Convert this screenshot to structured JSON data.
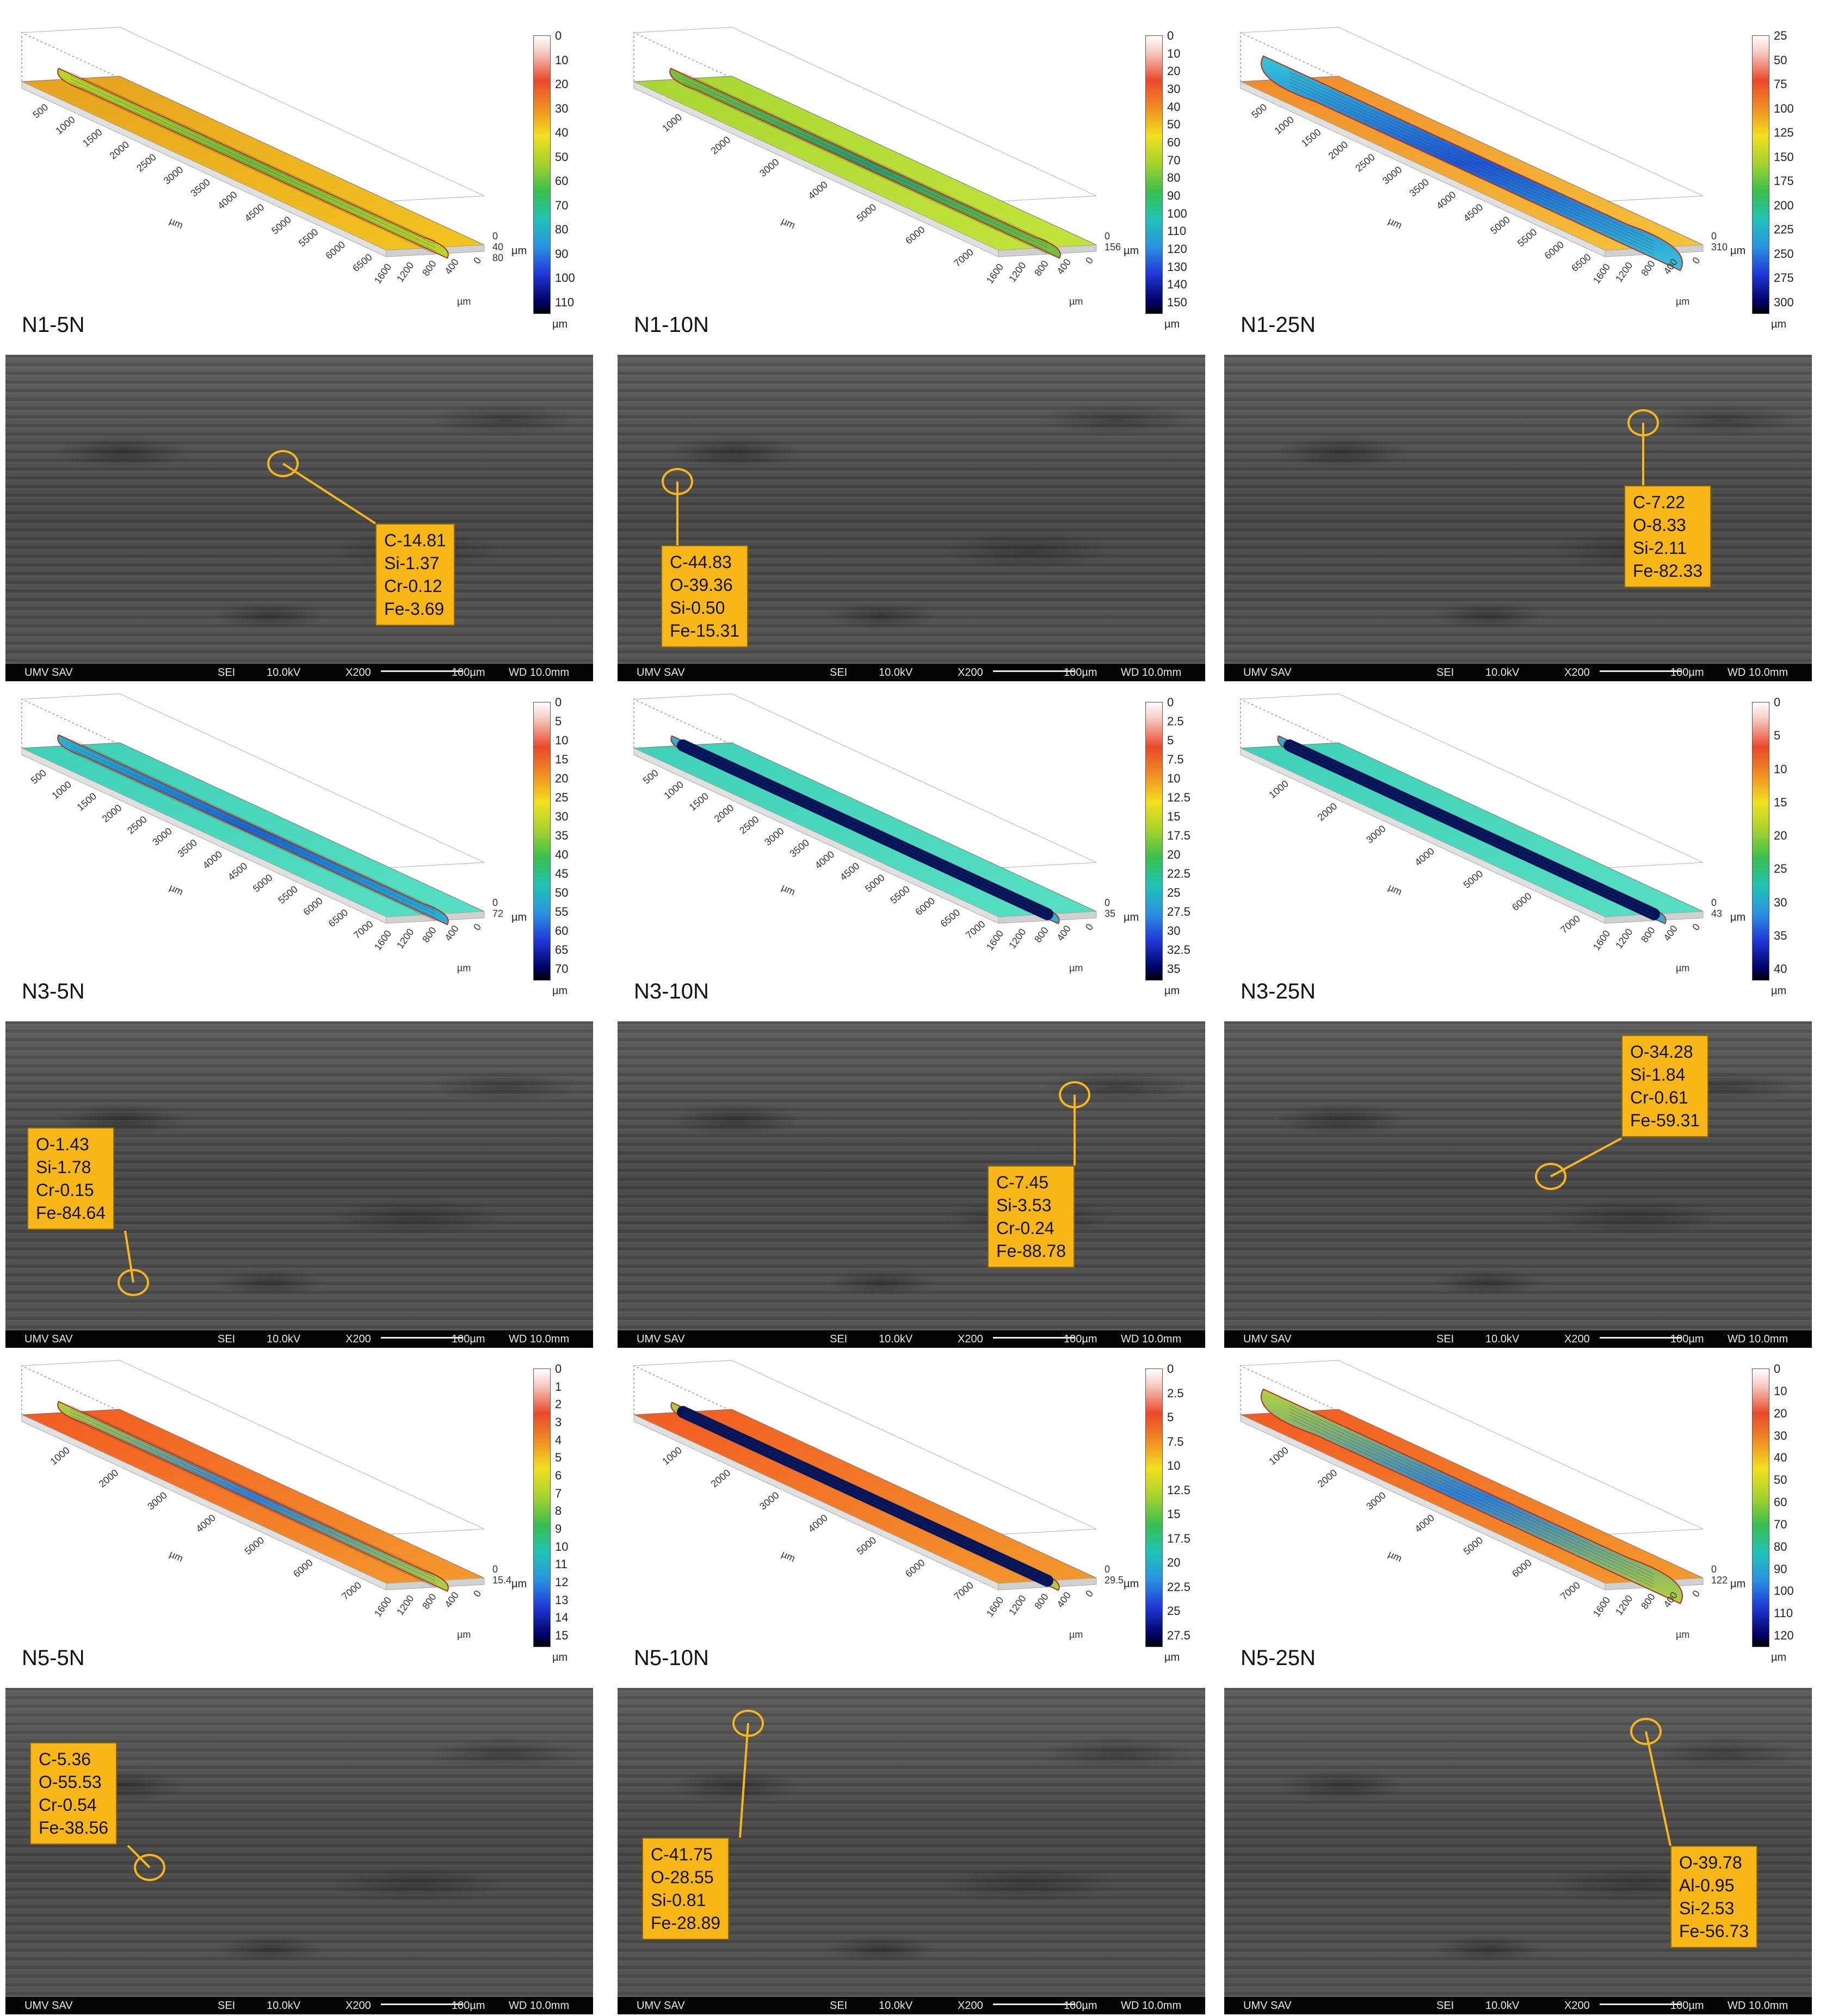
{
  "panels": [
    {
      "label": "N1-5N",
      "palette": "yellow",
      "zmax": "40",
      "zmax2": "80",
      "ticks": [
        "0",
        "10",
        "20",
        "30",
        "40",
        "50",
        "60",
        "70",
        "80",
        "90",
        "100",
        "110"
      ],
      "unit": "µm",
      "track": "narrow",
      "xticks": [
        "500",
        "1000",
        "1500",
        "2000",
        "2500",
        "3000",
        "3500",
        "4000",
        "4500",
        "5000",
        "5500",
        "6000",
        "6500"
      ],
      "eds": [
        "C-14.81",
        "Si-1.37",
        "Cr-0.12",
        "Fe-3.69"
      ]
    },
    {
      "label": "N1-10N",
      "palette": "lime",
      "zmax": "156",
      "zmax2": "",
      "ticks": [
        "0",
        "10",
        "20",
        "30",
        "40",
        "50",
        "60",
        "70",
        "80",
        "90",
        "100",
        "110",
        "120",
        "130",
        "140",
        "150"
      ],
      "unit": "µm",
      "track": "narrow",
      "xticks": [
        "1000",
        "2000",
        "3000",
        "4000",
        "5000",
        "6000",
        "7000"
      ],
      "eds": [
        "C-44.83",
        "O-39.36",
        "Si-0.50",
        "Fe-15.31"
      ]
    },
    {
      "label": "N1-25N",
      "palette": "orange",
      "zmax": "310",
      "zmax2": "",
      "ticks": [
        "25",
        "50",
        "75",
        "100",
        "125",
        "150",
        "175",
        "200",
        "225",
        "250",
        "275",
        "300"
      ],
      "unit": "µm",
      "track": "wide",
      "xticks": [
        "500",
        "1000",
        "1500",
        "2000",
        "2500",
        "3000",
        "3500",
        "4000",
        "4500",
        "5000",
        "5500",
        "6000",
        "6500"
      ],
      "eds": [
        "C-7.22",
        "O-8.33",
        "Si-2.11",
        "Fe-82.33"
      ]
    },
    {
      "label": "N3-5N",
      "palette": "teal",
      "zmax": "72",
      "zmax2": "",
      "ticks": [
        "0",
        "5",
        "10",
        "15",
        "20",
        "25",
        "30",
        "35",
        "40",
        "45",
        "50",
        "55",
        "60",
        "65",
        "70"
      ],
      "unit": "µm",
      "track": "narrow",
      "xticks": [
        "500",
        "1000",
        "1500",
        "2000",
        "2500",
        "3000",
        "3500",
        "4000",
        "4500",
        "5000",
        "5500",
        "6000",
        "6500",
        "7000"
      ],
      "eds": [
        "O-1.43",
        "Si-1.78",
        "Cr-0.15",
        "Fe-84.64"
      ]
    },
    {
      "label": "N3-10N",
      "palette": "teal",
      "zmax": "35",
      "zmax2": "",
      "ticks": [
        "0",
        "2.5",
        "5",
        "7.5",
        "10",
        "12.5",
        "15",
        "17.5",
        "20",
        "22.5",
        "25",
        "27.5",
        "30",
        "32.5",
        "35"
      ],
      "unit": "µm",
      "track": "dark",
      "xticks": [
        "500",
        "1000",
        "1500",
        "2000",
        "2500",
        "3000",
        "3500",
        "4000",
        "4500",
        "5000",
        "5500",
        "6000",
        "6500",
        "7000"
      ],
      "eds": [
        "C-7.45",
        "Si-3.53",
        "Cr-0.24",
        "Fe-88.78"
      ]
    },
    {
      "label": "N3-25N",
      "palette": "teal",
      "zmax": "43",
      "zmax2": "",
      "ticks": [
        "0",
        "5",
        "10",
        "15",
        "20",
        "25",
        "30",
        "35",
        "40"
      ],
      "unit": "µm",
      "track": "dark",
      "xticks": [
        "1000",
        "2000",
        "3000",
        "4000",
        "5000",
        "6000",
        "7000"
      ],
      "eds": [
        "O-34.28",
        "Si-1.84",
        "Cr-0.61",
        "Fe-59.31"
      ]
    },
    {
      "label": "N5-5N",
      "palette": "red",
      "zmax": "15.4",
      "zmax2": "",
      "ticks": [
        "0",
        "1",
        "2",
        "3",
        "4",
        "5",
        "6",
        "7",
        "8",
        "9",
        "10",
        "11",
        "12",
        "13",
        "14",
        "15"
      ],
      "unit": "µm",
      "track": "narrow",
      "xticks": [
        "1000",
        "2000",
        "3000",
        "4000",
        "5000",
        "6000",
        "7000"
      ],
      "eds": [
        "C-5.36",
        "O-55.53",
        "Cr-0.54",
        "Fe-38.56"
      ]
    },
    {
      "label": "N5-10N",
      "palette": "red",
      "zmax": "29.5",
      "zmax2": "",
      "ticks": [
        "0",
        "2.5",
        "5",
        "7.5",
        "10",
        "12.5",
        "15",
        "17.5",
        "20",
        "22.5",
        "25",
        "27.5"
      ],
      "unit": "µm",
      "track": "dark",
      "xticks": [
        "1000",
        "2000",
        "3000",
        "4000",
        "5000",
        "6000",
        "7000"
      ],
      "eds": [
        "C-41.75",
        "O-28.55",
        "Si-0.81",
        "Fe-28.89"
      ]
    },
    {
      "label": "N5-25N",
      "palette": "red",
      "zmax": "122",
      "zmax2": "",
      "ticks": [
        "0",
        "10",
        "20",
        "30",
        "40",
        "50",
        "60",
        "70",
        "80",
        "90",
        "100",
        "110",
        "120"
      ],
      "unit": "µm",
      "track": "wide",
      "xticks": [
        "1000",
        "2000",
        "3000",
        "4000",
        "5000",
        "6000",
        "7000"
      ],
      "eds": [
        "O-39.78",
        "Al-0.95",
        "Si-2.53",
        "Fe-56.73"
      ]
    }
  ],
  "sem_bar": {
    "left": "UMV SAV",
    "mode": "SEI",
    "kv": "10.0kV",
    "mag": "X200",
    "scale": "100µm",
    "wd": "WD 10.0mm"
  },
  "axis_unit": "µm",
  "yticks": [
    "1600",
    "1200",
    "800",
    "400",
    "0"
  ],
  "colors": {
    "box": "#f8b617",
    "semBg": "#4a4a4a"
  }
}
